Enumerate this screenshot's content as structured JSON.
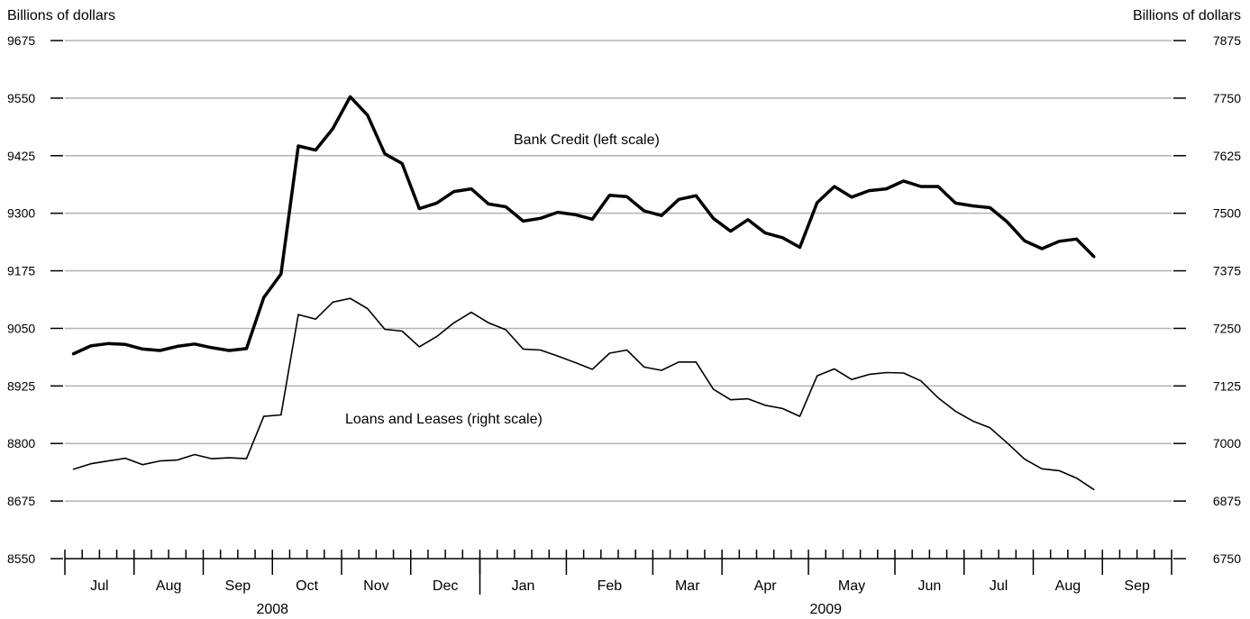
{
  "chart_data": {
    "type": "line",
    "left_axis": {
      "title": "Billions of dollars",
      "ylim": [
        8550,
        9675
      ],
      "ticks": [
        "9675",
        "9550",
        "9425",
        "9300",
        "9175",
        "9050",
        "8925",
        "8800",
        "8675",
        "8550"
      ],
      "tick_values": [
        9675,
        9550,
        9425,
        9300,
        9175,
        9050,
        8925,
        8800,
        8675,
        8550
      ]
    },
    "right_axis": {
      "title": "Billions of dollars",
      "ylim": [
        6750,
        7875
      ],
      "ticks": [
        "7875",
        "7750",
        "7625",
        "7500",
        "7375",
        "7250",
        "7125",
        "7000",
        "6875",
        "6750"
      ],
      "tick_values": [
        7875,
        7750,
        7625,
        7500,
        7375,
        7250,
        7125,
        7000,
        6875,
        6750
      ]
    },
    "x_axis": {
      "weeks_total": 64,
      "months": [
        {
          "label": "Jul",
          "weeks": 4
        },
        {
          "label": "Aug",
          "weeks": 4
        },
        {
          "label": "Sep",
          "weeks": 4
        },
        {
          "label": "Oct",
          "weeks": 4
        },
        {
          "label": "Nov",
          "weeks": 4
        },
        {
          "label": "Dec",
          "weeks": 4
        },
        {
          "label": "Jan",
          "weeks": 5
        },
        {
          "label": "Feb",
          "weeks": 5
        },
        {
          "label": "Mar",
          "weeks": 4
        },
        {
          "label": "Apr",
          "weeks": 5
        },
        {
          "label": "May",
          "weeks": 5
        },
        {
          "label": "Jun",
          "weeks": 4
        },
        {
          "label": "Jul",
          "weeks": 4
        },
        {
          "label": "Aug",
          "weeks": 4
        },
        {
          "label": "Sep",
          "weeks": 4
        }
      ],
      "years": [
        {
          "label": "2008",
          "start_month": 0,
          "end_month": 6
        },
        {
          "label": "2009",
          "start_month": 6,
          "end_month": 15
        }
      ]
    },
    "grid": true,
    "series": [
      {
        "name": "Bank Credit (left scale)",
        "axis": "left",
        "line_weight": "bold",
        "x": [
          0,
          1,
          2,
          3,
          4,
          5,
          6,
          7,
          8,
          9,
          10,
          11,
          12,
          13,
          14,
          15,
          16,
          17,
          18,
          19,
          20,
          21,
          22,
          23,
          24,
          25,
          26,
          27,
          28,
          29,
          30,
          31,
          32,
          33,
          34,
          35,
          36,
          37,
          38,
          39,
          40,
          41,
          42,
          43,
          44,
          45,
          46,
          47,
          48,
          49,
          50,
          51,
          52,
          53,
          54,
          55,
          56,
          57,
          58,
          59
        ],
        "values": [
          8995,
          9012,
          9017,
          9015,
          9005,
          9002,
          9011,
          9016,
          9008,
          9002,
          9006,
          9117,
          9168,
          9446,
          9437,
          9484,
          9553,
          9513,
          9429,
          9408,
          9310,
          9322,
          9347,
          9353,
          9320,
          9314,
          9283,
          9289,
          9302,
          9297,
          9287,
          9339,
          9336,
          9305,
          9295,
          9330,
          9338,
          9289,
          9261,
          9286,
          9257,
          9247,
          9226,
          9323,
          9358,
          9335,
          9349,
          9353,
          9370,
          9358,
          9358,
          9322,
          9316,
          9312,
          9281,
          9240,
          9223,
          9239,
          9244,
          9206
        ]
      },
      {
        "name": "Loans and Leases (right scale)",
        "axis": "right",
        "line_weight": "thin",
        "x": [
          0,
          1,
          2,
          3,
          4,
          5,
          6,
          7,
          8,
          9,
          10,
          11,
          12,
          13,
          14,
          15,
          16,
          17,
          18,
          19,
          20,
          21,
          22,
          23,
          24,
          25,
          26,
          27,
          28,
          29,
          30,
          31,
          32,
          33,
          34,
          35,
          36,
          37,
          38,
          39,
          40,
          41,
          42,
          43,
          44,
          45,
          46,
          47,
          48,
          49,
          50,
          51,
          52,
          53,
          54,
          55,
          56,
          57,
          58,
          59
        ],
        "values": [
          6944,
          6956,
          6962,
          6968,
          6954,
          6962,
          6964,
          6976,
          6967,
          6969,
          6967,
          7059,
          7062,
          7280,
          7270,
          7307,
          7315,
          7293,
          7248,
          7244,
          7210,
          7232,
          7262,
          7285,
          7262,
          7247,
          7205,
          7203,
          7190,
          7176,
          7161,
          7196,
          7203,
          7166,
          7159,
          7177,
          7177,
          7118,
          7095,
          7097,
          7083,
          7076,
          7059,
          7147,
          7162,
          7139,
          7150,
          7154,
          7153,
          7136,
          7099,
          7070,
          7049,
          7034,
          7001,
          6966,
          6945,
          6941,
          6925,
          6900
        ]
      }
    ],
    "annotations": [
      {
        "text": "Bank Credit (left scale)",
        "series": 0
      },
      {
        "text": "Loans and Leases (right scale)",
        "series": 1
      }
    ]
  }
}
